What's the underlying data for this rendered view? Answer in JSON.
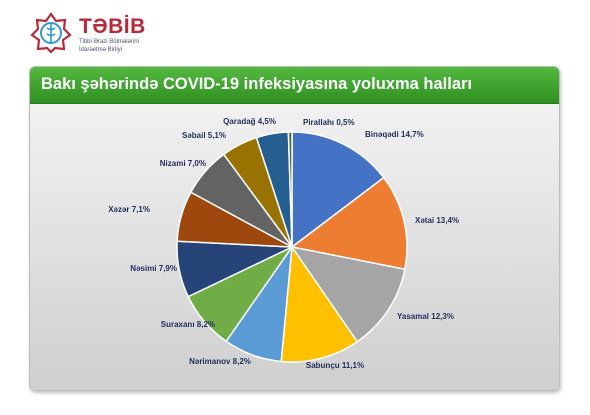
{
  "logo": {
    "name": "TƏBİB",
    "subtitle_line1": "Tibbi Ərazi Bölmələrini",
    "subtitle_line2": "İdarəetmə Birliyi",
    "brand_color": "#b82a3a"
  },
  "chart_data": {
    "type": "pie",
    "title": "Bakı şəhərində COVID-19 infeksiyasına yoluxma halları",
    "start": "12 o'clock, clockwise",
    "slices": [
      {
        "label": "Binəqədi",
        "value": 14.7,
        "display": "Binəqədi 14,7%",
        "color": "#4472c4"
      },
      {
        "label": "Xətai",
        "value": 13.4,
        "display": "Xətai 13,4%",
        "color": "#ed7d31"
      },
      {
        "label": "Yasamal",
        "value": 12.3,
        "display": "Yasamal 12,3%",
        "color": "#a5a5a5"
      },
      {
        "label": "Sabunçu",
        "value": 11.1,
        "display": "Sabunçu 11,1%",
        "color": "#ffc000"
      },
      {
        "label": "Nərimanov",
        "value": 8.2,
        "display": "Nərimanov 8,2%",
        "color": "#5b9bd5"
      },
      {
        "label": "Suraxanı",
        "value": 8.2,
        "display": "Suraxanı 8,2%",
        "color": "#70ad47"
      },
      {
        "label": "Nəsimi",
        "value": 7.9,
        "display": "Nəsimi 7,9%",
        "color": "#264478"
      },
      {
        "label": "Xəzər",
        "value": 7.1,
        "display": "Xəzər 7,1%",
        "color": "#9e480e"
      },
      {
        "label": "Nizami",
        "value": 7.0,
        "display": "Nizami 7,0%",
        "color": "#636363"
      },
      {
        "label": "Səbail",
        "value": 5.1,
        "display": "Səbail 5,1%",
        "color": "#997300"
      },
      {
        "label": "Qaradağ",
        "value": 4.5,
        "display": "Qaradağ 4,5%",
        "color": "#255e91"
      },
      {
        "label": "Pirallahı",
        "value": 0.5,
        "display": "Pirallahı 0,5%",
        "color": "#43682b"
      }
    ]
  }
}
